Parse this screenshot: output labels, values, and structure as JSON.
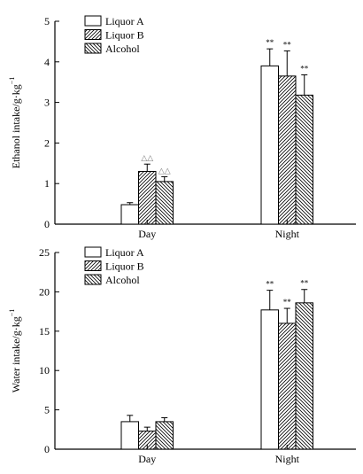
{
  "chart_data": [
    {
      "type": "bar",
      "categories": [
        "Day",
        "Night"
      ],
      "ylabel": "Ethanol intake/g·kg",
      "ylabel_sup": "−1",
      "ylim": [
        0,
        5
      ],
      "yticks": [
        0,
        1,
        2,
        3,
        4,
        5
      ],
      "legend_position": "top-left",
      "series": [
        {
          "name": "Liquor A",
          "pattern": "none",
          "values": [
            0.48,
            3.9
          ],
          "errors": [
            0.05,
            0.42
          ],
          "marks": [
            "",
            "**"
          ]
        },
        {
          "name": "Liquor B",
          "pattern": "hatch-forward",
          "values": [
            1.3,
            3.65
          ],
          "errors": [
            0.18,
            0.62
          ],
          "marks": [
            "△△",
            "**"
          ]
        },
        {
          "name": "Alcohol",
          "pattern": "hatch-back",
          "values": [
            1.05,
            3.18
          ],
          "errors": [
            0.12,
            0.5
          ],
          "marks": [
            "△△",
            "**"
          ]
        }
      ]
    },
    {
      "type": "bar",
      "categories": [
        "Day",
        "Night"
      ],
      "ylabel": "Water intake/g·kg",
      "ylabel_sup": "−1",
      "ylim": [
        0,
        25
      ],
      "yticks": [
        0,
        5,
        10,
        15,
        20,
        25
      ],
      "legend_position": "top-left",
      "series": [
        {
          "name": "Liquor A",
          "pattern": "none",
          "values": [
            3.5,
            17.7
          ],
          "errors": [
            0.8,
            2.5
          ],
          "marks": [
            "",
            "**"
          ]
        },
        {
          "name": "Liquor B",
          "pattern": "hatch-forward",
          "values": [
            2.3,
            16.0
          ],
          "errors": [
            0.5,
            1.9
          ],
          "marks": [
            "",
            "**"
          ]
        },
        {
          "name": "Alcohol",
          "pattern": "hatch-back",
          "values": [
            3.5,
            18.6
          ],
          "errors": [
            0.5,
            1.7
          ],
          "marks": [
            "",
            "**"
          ]
        }
      ]
    }
  ]
}
